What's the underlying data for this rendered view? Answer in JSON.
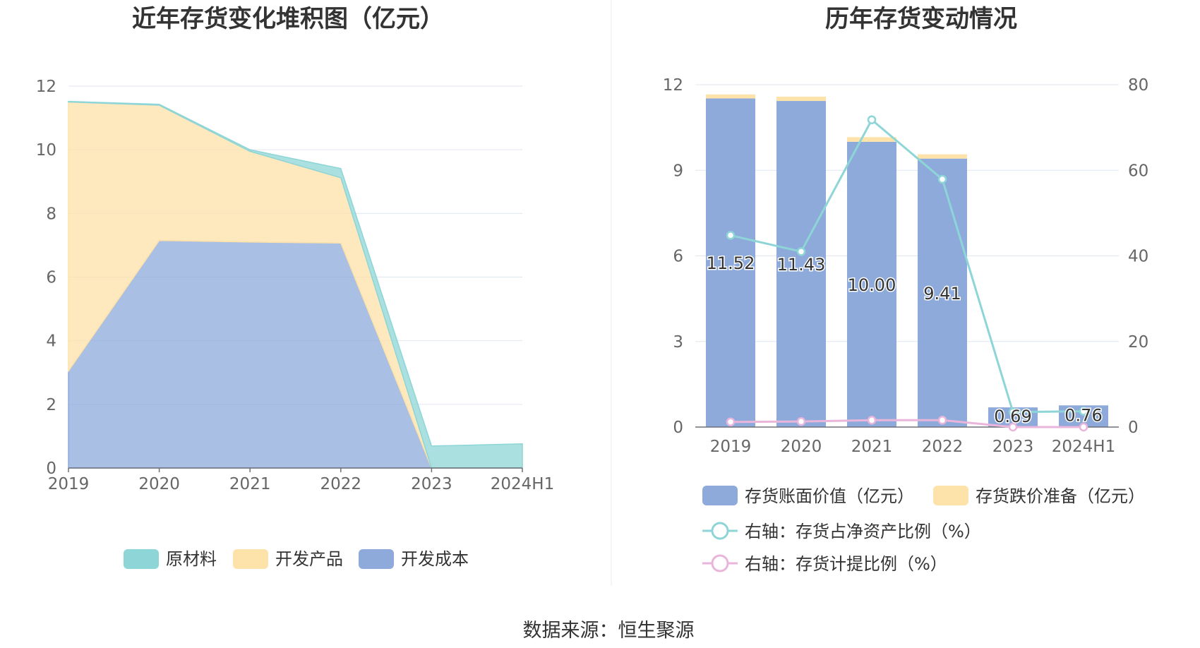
{
  "source_text": "数据来源：恒生聚源",
  "chart_data": [
    {
      "type": "area",
      "stacked": true,
      "title": "近年存货变化堆积图（亿元）",
      "categories": [
        "2019",
        "2020",
        "2021",
        "2022",
        "2023",
        "2024H1"
      ],
      "ylim": [
        0,
        12
      ],
      "yticks": [
        0,
        2,
        4,
        6,
        8,
        10,
        12
      ],
      "grid": true,
      "legend_position": "bottom",
      "series": [
        {
          "name": "开发成本",
          "color": "#8eaadb",
          "values": [
            3.05,
            7.15,
            7.1,
            7.07,
            0,
            0
          ]
        },
        {
          "name": "开发产品",
          "color": "#fde2a9",
          "values": [
            8.45,
            4.25,
            2.85,
            2.05,
            0,
            0
          ]
        },
        {
          "name": "原材料",
          "color": "#8dd5d6",
          "values": [
            0.02,
            0.03,
            0.05,
            0.29,
            0.69,
            0.76
          ]
        }
      ]
    },
    {
      "type": "bar",
      "title": "历年存货变动情况",
      "categories": [
        "2019",
        "2020",
        "2021",
        "2022",
        "2023",
        "2024H1"
      ],
      "ylim": [
        0,
        12
      ],
      "yticks": [
        0,
        3,
        6,
        9,
        12
      ],
      "y2lim": [
        0,
        80
      ],
      "y2ticks": [
        0,
        20,
        40,
        60,
        80
      ],
      "grid": true,
      "legend_position": "bottom",
      "series": [
        {
          "name": "存货账面价值（亿元）",
          "kind": "bar",
          "color": "#8eaadb",
          "values": [
            11.52,
            11.43,
            10.0,
            9.41,
            0.69,
            0.76
          ],
          "labels": [
            "11.52",
            "11.43",
            "10.00",
            "9.41",
            "0.69",
            "0.76"
          ]
        },
        {
          "name": "存货跌价准备（亿元）",
          "kind": "bar",
          "color": "#fde2a9",
          "values": [
            0.14,
            0.15,
            0.16,
            0.15,
            0.0,
            0.0
          ]
        },
        {
          "name": "右轴：存货占净资产比例（%）",
          "kind": "line",
          "axis": "right",
          "color": "#8dd5d6",
          "values": [
            44.8,
            41.0,
            71.8,
            57.9,
            3.5,
            3.7
          ]
        },
        {
          "name": "右轴：存货计提比例（%）",
          "kind": "line",
          "axis": "right",
          "color": "#eab5db",
          "values": [
            1.2,
            1.3,
            1.6,
            1.6,
            0.0,
            0.0
          ]
        }
      ]
    }
  ]
}
